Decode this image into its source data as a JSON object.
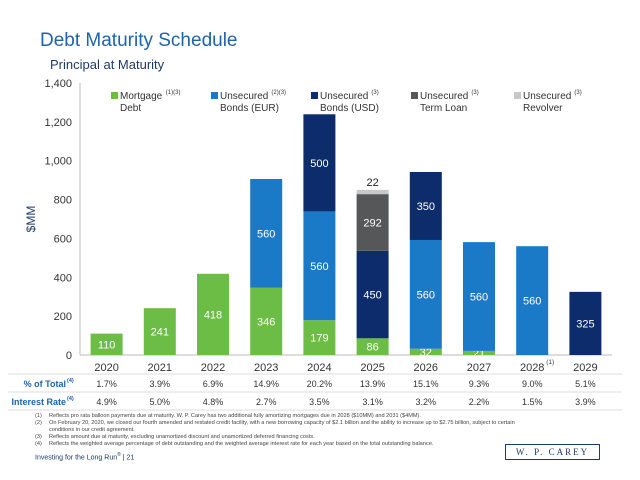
{
  "header": {
    "title": "Debt Maturity Schedule",
    "subtitle": "Principal at Maturity"
  },
  "colors": {
    "mortgage": "#6cbd45",
    "eur": "#1a7ac8",
    "usd": "#0d2c6b",
    "term": "#555759",
    "revolver": "#c8c8c8",
    "accent": "#1f63a8"
  },
  "chart_data": {
    "type": "bar",
    "stacked": true,
    "ylabel": "$MM",
    "ylim": [
      0,
      1400
    ],
    "yticks": [
      "0",
      "200",
      "400",
      "600",
      "800",
      "1,000",
      "1,200",
      "1,400"
    ],
    "ytick_values": [
      0,
      200,
      400,
      600,
      800,
      1000,
      1200,
      1400
    ],
    "categories": [
      "2020",
      "2021",
      "2022",
      "2023",
      "2024",
      "2025",
      "2026",
      "2027",
      "2028",
      "2029"
    ],
    "category_sup": [
      "",
      "",
      "",
      "",
      "",
      "",
      "",
      "",
      "(1)",
      ""
    ],
    "series": [
      {
        "name": "Mortgage Debt",
        "legend_line1": "Mortgage",
        "legend_line2": "Debt",
        "legend_sup": "(1)(3)",
        "color_key": "mortgage",
        "values": [
          110,
          241,
          418,
          346,
          179,
          86,
          32,
          21,
          0,
          0
        ],
        "labels": [
          "110",
          "241",
          "418",
          "346",
          "179",
          "86",
          "32",
          "21",
          "",
          ""
        ]
      },
      {
        "name": "Unsecured Bonds (EUR)",
        "legend_line1": "Unsecured",
        "legend_line2": "Bonds (EUR)",
        "legend_sup": "(2)(3)",
        "color_key": "eur",
        "values": [
          0,
          0,
          0,
          560,
          560,
          0,
          560,
          560,
          560,
          0
        ],
        "labels": [
          "",
          "",
          "",
          "560",
          "560",
          "",
          "560",
          "560",
          "560",
          ""
        ]
      },
      {
        "name": "Unsecured Bonds (USD)",
        "legend_line1": "Unsecured",
        "legend_line2": "Bonds (USD)",
        "legend_sup": "(3)",
        "color_key": "usd",
        "values": [
          0,
          0,
          0,
          0,
          500,
          450,
          350,
          0,
          0,
          325
        ],
        "labels": [
          "",
          "",
          "",
          "",
          "500",
          "450",
          "350",
          "",
          "",
          "325"
        ]
      },
      {
        "name": "Unsecured Term Loan",
        "legend_line1": "Unsecured",
        "legend_line2": "Term Loan",
        "legend_sup": "(3)",
        "color_key": "term",
        "values": [
          0,
          0,
          0,
          0,
          0,
          292,
          0,
          0,
          0,
          0
        ],
        "labels": [
          "",
          "",
          "",
          "",
          "",
          "292",
          "",
          "",
          "",
          ""
        ]
      },
      {
        "name": "Unsecured Revolver",
        "legend_line1": "Unsecured",
        "legend_line2": "Revolver",
        "legend_sup": "(3)",
        "color_key": "revolver",
        "values": [
          0,
          0,
          0,
          0,
          0,
          22,
          0,
          0,
          0,
          0
        ],
        "labels": [
          "",
          "",
          "",
          "",
          "",
          "22",
          "",
          "",
          "",
          ""
        ]
      }
    ]
  },
  "table": {
    "rows": [
      {
        "label": "% of Total",
        "sup": "(4)",
        "values": [
          "1.7%",
          "3.9%",
          "6.9%",
          "14.9%",
          "20.2%",
          "13.9%",
          "15.1%",
          "9.3%",
          "9.0%",
          "5.1%"
        ]
      },
      {
        "label": "Interest Rate",
        "sup": "(4)",
        "values": [
          "4.9%",
          "5.0%",
          "4.8%",
          "2.7%",
          "3.5%",
          "3.1%",
          "3.2%",
          "2.2%",
          "1.5%",
          "3.9%"
        ]
      }
    ]
  },
  "footnotes": [
    {
      "num": "(1)",
      "lines": [
        "Reflects pro rata balloon payments due at maturity. W. P. Carey has two additional fully amortizing mortgages due in 2028 ($10MM) and 2031 ($4MM)."
      ]
    },
    {
      "num": "(2)",
      "lines": [
        "On February 20, 2020, we closed our fourth amended and restated credit facility, with a new borrowing capacity of $2.1 billion and the ability to increase up to $2.75 billion, subject to certain",
        "conditions in our credit agreement."
      ]
    },
    {
      "num": "(3)",
      "lines": [
        "Reflects amount due at maturity, excluding unamortized discount and unamortized deferred financing costs."
      ]
    },
    {
      "num": "(4)",
      "lines": [
        "Reflects the weighted average percentage of debt outstanding and the weighted average interest rate for each year based on the total outstanding balance."
      ]
    }
  ],
  "footer": {
    "text": "Investing for the Long Run",
    "reg": "®",
    "page": "| 21",
    "logo": "W. P. CAREY"
  }
}
